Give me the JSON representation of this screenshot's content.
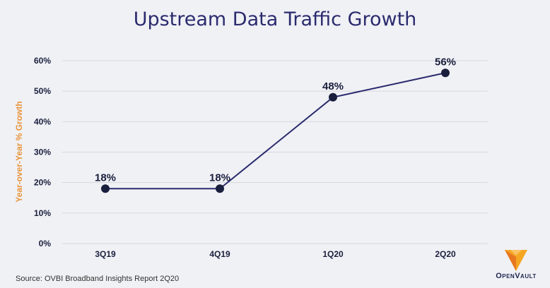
{
  "chart_data": {
    "type": "line",
    "title": "Upstream Data Traffic Growth",
    "xlabel": "",
    "ylabel": "Year-over-Year % Growth",
    "categories": [
      "3Q19",
      "4Q19",
      "1Q20",
      "2Q20"
    ],
    "values": [
      18,
      18,
      48,
      56
    ],
    "data_labels": [
      "18%",
      "18%",
      "48%",
      "56%"
    ],
    "ylim": [
      0,
      60
    ],
    "yticks": [
      0,
      10,
      20,
      30,
      40,
      50,
      60
    ],
    "ytick_labels": [
      "0%",
      "10%",
      "20%",
      "30%",
      "40%",
      "50%",
      "60%"
    ],
    "grid": true,
    "legend": "none"
  },
  "footer": {
    "source": "Source: OVBI Broadband Insights Report 2Q20"
  },
  "logo": {
    "text": "OpenVault",
    "colors": [
      "#f5a623",
      "#e87722"
    ]
  },
  "colors": {
    "line": "#2b2b6e",
    "marker": "#1a1f3d",
    "ylabel": "#e8943a",
    "grid": "#d5d7de",
    "text": "#1a1f3d"
  }
}
